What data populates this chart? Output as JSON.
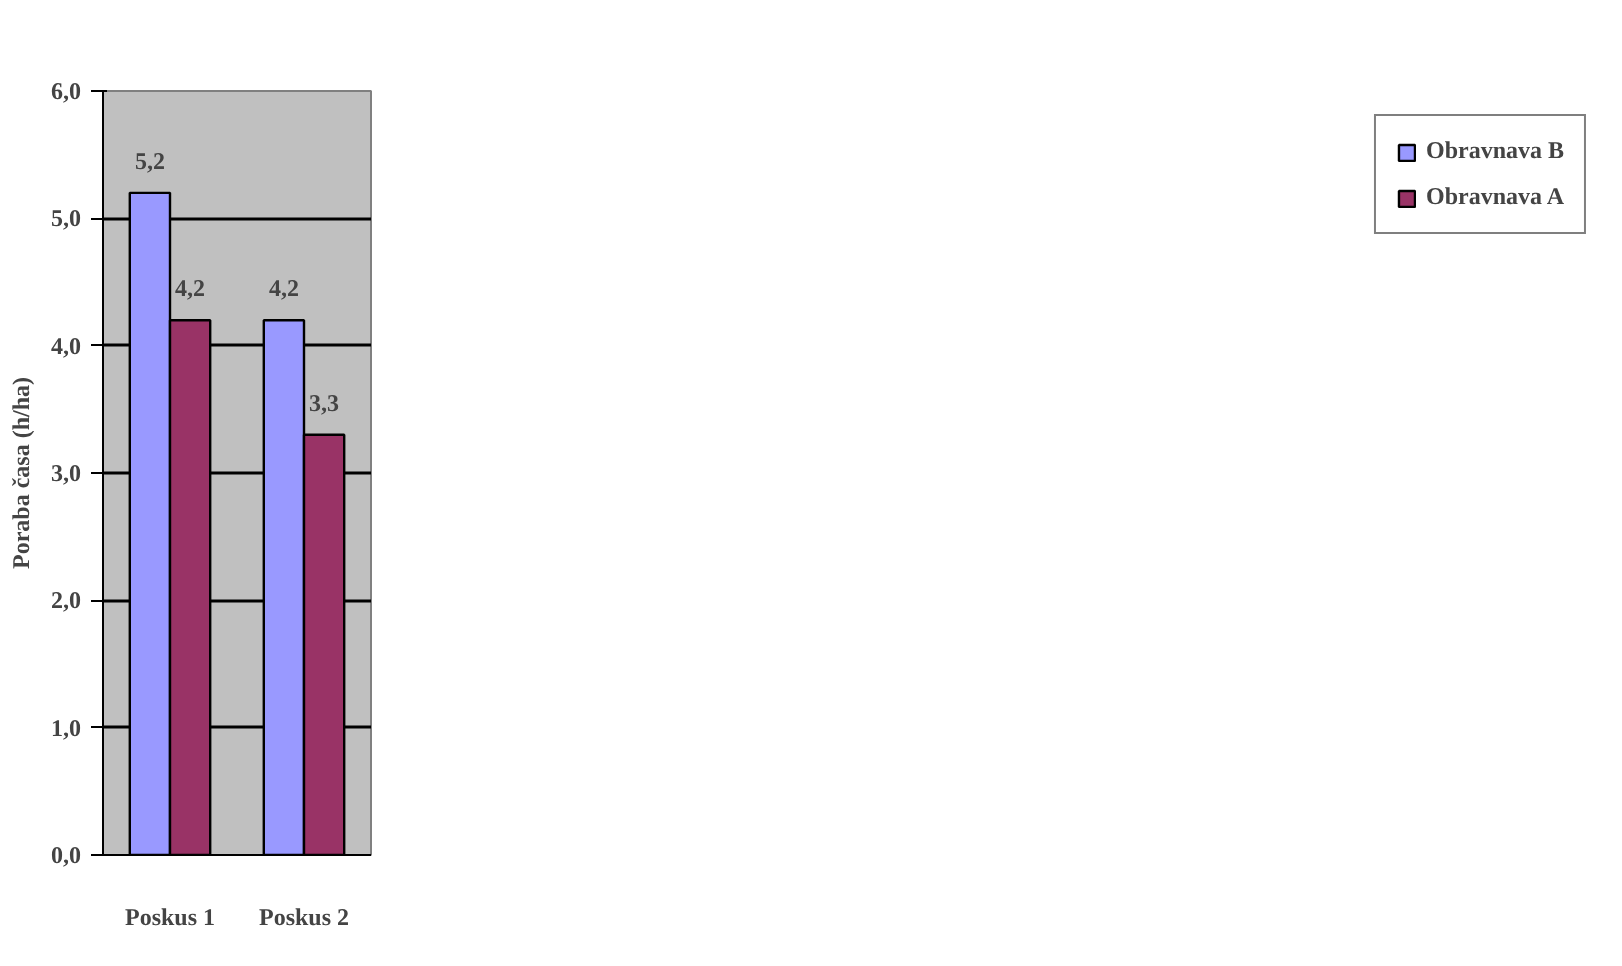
{
  "chart_data": {
    "type": "bar",
    "ylabel": "Poraba časa (h/ha)",
    "categories": [
      "Poskus 1",
      "Poskus 2"
    ],
    "series": [
      {
        "name": "Obravnava B",
        "color": "#9999ff",
        "values": [
          5.2,
          4.2
        ],
        "value_labels": [
          "5,2",
          "4,2"
        ]
      },
      {
        "name": "Obravnava A",
        "color": "#993366",
        "values": [
          4.2,
          3.3
        ],
        "value_labels": [
          "4,2",
          "3,3"
        ]
      }
    ],
    "ylim": [
      0,
      6
    ],
    "yticks": [
      {
        "value": 0,
        "label": "0,0"
      },
      {
        "value": 1,
        "label": "1,0"
      },
      {
        "value": 2,
        "label": "2,0"
      },
      {
        "value": 3,
        "label": "3,0"
      },
      {
        "value": 4,
        "label": "4,0"
      },
      {
        "value": 5,
        "label": "5,0"
      },
      {
        "value": 6,
        "label": "6,0"
      }
    ],
    "grid": "y",
    "legend": "right"
  }
}
